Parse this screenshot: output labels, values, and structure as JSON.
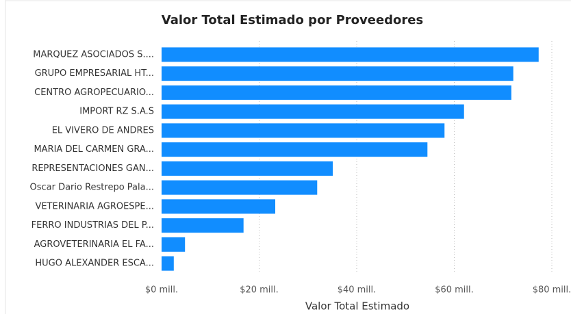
{
  "chart_data": {
    "type": "bar",
    "orientation": "horizontal",
    "title": "Valor Total Estimado por Proveedores",
    "x_label": "Valor Total Estimado",
    "categories": [
      "MARQUEZ ASOCIADOS S....",
      "GRUPO EMPRESARIAL HT...",
      "CENTRO AGROPECUARIO...",
      "IMPORT RZ S.A.S",
      "EL VIVERO DE ANDRES",
      "MARIA DEL CARMEN GRA...",
      "REPRESENTACIONES GAN...",
      "Oscar Dario Restrepo Pala...",
      "VETERINARIA AGROESPE...",
      "FERRO INDUSTRIAS DEL P...",
      "AGROVETERINARIA EL FA...",
      "HUGO ALEXANDER ESCA..."
    ],
    "values": [
      77.3,
      72.1,
      71.7,
      62.0,
      58.0,
      54.5,
      35.1,
      31.9,
      23.3,
      16.8,
      4.8,
      2.5
    ],
    "color": "#118dff",
    "xlim": [
      0,
      80
    ],
    "xticks": [
      {
        "value": 0,
        "label": "$0 mill."
      },
      {
        "value": 20,
        "label": "$20 mill."
      },
      {
        "value": 40,
        "label": "$40 mill."
      },
      {
        "value": 60,
        "label": "$60 mill."
      },
      {
        "value": 80,
        "label": "$80 mill."
      }
    ],
    "grid": true
  }
}
